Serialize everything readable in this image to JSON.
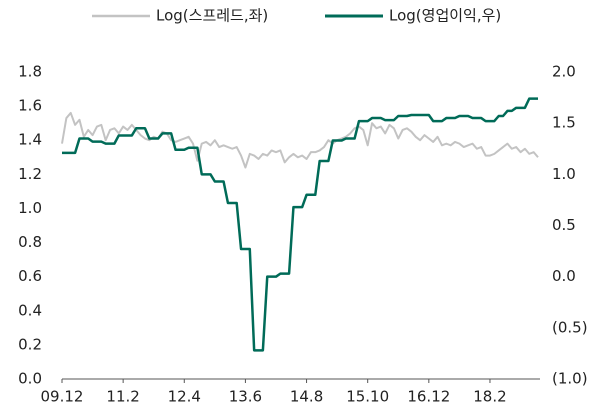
{
  "chart_data": {
    "type": "line",
    "categories": [
      "09.12",
      null,
      null,
      null,
      null,
      null,
      null,
      null,
      null,
      null,
      null,
      null,
      null,
      null,
      "11.2",
      null,
      null,
      null,
      null,
      null,
      null,
      null,
      null,
      null,
      null,
      null,
      null,
      null,
      "12.4",
      null,
      null,
      null,
      null,
      null,
      null,
      null,
      null,
      null,
      null,
      null,
      null,
      null,
      "13.6",
      null,
      null,
      null,
      null,
      null,
      null,
      null,
      null,
      null,
      null,
      null,
      null,
      null,
      "14.8",
      null,
      null,
      null,
      null,
      null,
      null,
      null,
      null,
      null,
      null,
      null,
      null,
      null,
      "15.10",
      null,
      null,
      null,
      null,
      null,
      null,
      null,
      null,
      null,
      null,
      null,
      null,
      null,
      "16.12",
      null,
      null,
      null,
      null,
      null,
      null,
      null,
      null,
      null,
      null,
      null,
      null,
      null,
      "18.2",
      null,
      null,
      null,
      null,
      null,
      null,
      null,
      null,
      null,
      null,
      null
    ],
    "series": [
      {
        "name": "Log(스프레드,좌)",
        "color": "#c3c3c3",
        "axis": "y",
        "values": [
          1.38,
          1.53,
          1.56,
          1.49,
          1.52,
          1.42,
          1.46,
          1.43,
          1.48,
          1.49,
          1.4,
          1.46,
          1.47,
          1.44,
          1.48,
          1.46,
          1.49,
          1.46,
          1.43,
          1.41,
          1.4,
          1.42,
          1.41,
          1.45,
          1.44,
          1.4,
          1.39,
          1.4,
          1.41,
          1.42,
          1.38,
          1.28,
          1.38,
          1.39,
          1.37,
          1.4,
          1.36,
          1.37,
          1.36,
          1.35,
          1.36,
          1.31,
          1.24,
          1.32,
          1.31,
          1.29,
          1.32,
          1.31,
          1.34,
          1.33,
          1.34,
          1.27,
          1.3,
          1.32,
          1.3,
          1.31,
          1.29,
          1.33,
          1.33,
          1.34,
          1.36,
          1.4,
          1.38,
          1.4,
          1.41,
          1.42,
          1.44,
          1.47,
          1.48,
          1.46,
          1.37,
          1.5,
          1.47,
          1.48,
          1.44,
          1.49,
          1.47,
          1.41,
          1.46,
          1.47,
          1.45,
          1.42,
          1.4,
          1.43,
          1.41,
          1.39,
          1.42,
          1.37,
          1.38,
          1.37,
          1.39,
          1.38,
          1.36,
          1.37,
          1.38,
          1.35,
          1.36,
          1.31,
          1.31,
          1.32,
          1.34,
          1.36,
          1.38,
          1.35,
          1.36,
          1.33,
          1.35,
          1.32,
          1.33,
          1.3
        ]
      },
      {
        "name": "Log(영업이익,우)",
        "color": "#006b58",
        "axis": "y2",
        "values": [
          1.21,
          1.21,
          1.21,
          1.21,
          1.35,
          1.35,
          1.35,
          1.32,
          1.32,
          1.32,
          1.3,
          1.3,
          1.3,
          1.38,
          1.38,
          1.38,
          1.38,
          1.45,
          1.45,
          1.45,
          1.35,
          1.35,
          1.35,
          1.4,
          1.4,
          1.4,
          1.24,
          1.24,
          1.24,
          1.26,
          1.26,
          1.26,
          1.0,
          1.0,
          1.0,
          0.93,
          0.93,
          0.93,
          0.72,
          0.72,
          0.72,
          0.27,
          0.27,
          0.27,
          -0.72,
          -0.72,
          -0.72,
          0.0,
          0.0,
          0.0,
          0.03,
          0.03,
          0.03,
          0.68,
          0.68,
          0.68,
          0.8,
          0.8,
          0.8,
          1.13,
          1.13,
          1.13,
          1.33,
          1.33,
          1.33,
          1.35,
          1.35,
          1.35,
          1.52,
          1.52,
          1.52,
          1.55,
          1.55,
          1.55,
          1.53,
          1.53,
          1.53,
          1.57,
          1.57,
          1.57,
          1.58,
          1.58,
          1.58,
          1.58,
          1.58,
          1.52,
          1.52,
          1.52,
          1.55,
          1.55,
          1.55,
          1.57,
          1.57,
          1.57,
          1.55,
          1.55,
          1.55,
          1.52,
          1.52,
          1.52,
          1.57,
          1.57,
          1.62,
          1.62,
          1.65,
          1.65,
          1.65,
          1.74,
          1.74,
          1.74
        ]
      }
    ],
    "ylim": [
      0,
      1.8
    ],
    "yticks": [
      {
        "value": 0,
        "label": "0.0"
      },
      0.2,
      0.4,
      0.6,
      0.8,
      {
        "value": 1,
        "label": "1.0"
      },
      1.2,
      1.4,
      1.6,
      1.8
    ],
    "y2lim": [
      -1,
      2
    ],
    "y2ticks": [
      {
        "value": -1,
        "label": "(1.0)"
      },
      {
        "value": -0.5,
        "label": "(0.5)"
      },
      {
        "value": 0,
        "label": "0.0"
      },
      0.5,
      {
        "value": 1,
        "label": "1.0"
      },
      1.5,
      {
        "value": 2,
        "label": "2.0"
      }
    ],
    "legend": "top"
  }
}
